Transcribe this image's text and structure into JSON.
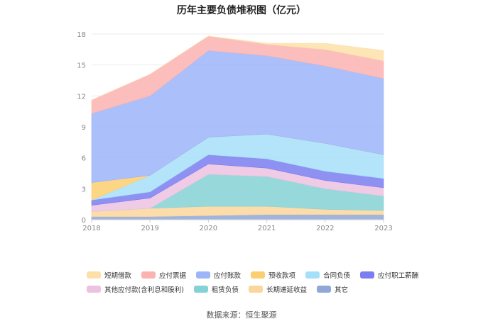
{
  "chart_data": {
    "type": "area",
    "stacked": true,
    "title": "历年主要负债堆积图（亿元）",
    "categories": [
      "2018",
      "2019",
      "2020",
      "2021",
      "2022",
      "2023"
    ],
    "ylim": [
      0,
      18
    ],
    "yticks": [
      0,
      3,
      6,
      9,
      12,
      15,
      18
    ],
    "grid": true,
    "legend_position": "bottom",
    "series": [
      {
        "name": "其它",
        "color": "#8fa8d8",
        "values": [
          0.3,
          0.3,
          0.4,
          0.5,
          0.5,
          0.5
        ]
      },
      {
        "name": "长期递延收益",
        "color": "#fbd69b",
        "values": [
          0.5,
          0.8,
          0.9,
          0.8,
          0.5,
          0.4
        ]
      },
      {
        "name": "租赁负债",
        "color": "#85d2d4",
        "values": [
          0.0,
          0.0,
          3.1,
          2.9,
          2.0,
          1.4
        ]
      },
      {
        "name": "其他应付款(含利息和股利)",
        "color": "#ecc2e0",
        "values": [
          0.6,
          1.0,
          1.0,
          0.8,
          0.8,
          0.8
        ]
      },
      {
        "name": "应付职工薪酬",
        "color": "#7b7ef0",
        "values": [
          0.5,
          0.6,
          0.9,
          0.9,
          0.9,
          0.9
        ]
      },
      {
        "name": "合同负债",
        "color": "#a6dff8",
        "values": [
          0.0,
          1.6,
          1.7,
          2.4,
          2.7,
          2.3
        ]
      },
      {
        "name": "预收款项",
        "color": "#fbcf70",
        "values": [
          1.7,
          0.0,
          0.0,
          0.0,
          0.0,
          0.0
        ]
      },
      {
        "name": "应付账款",
        "color": "#9cb4fa",
        "values": [
          6.7,
          7.7,
          8.4,
          7.6,
          7.5,
          7.4
        ]
      },
      {
        "name": "应付票据",
        "color": "#fbb3b0",
        "values": [
          1.3,
          2.1,
          1.4,
          1.1,
          1.6,
          1.7
        ]
      },
      {
        "name": "短期借款",
        "color": "#fde0a9",
        "values": [
          0.0,
          0.0,
          0.0,
          0.1,
          0.6,
          1.0
        ]
      }
    ],
    "legend_order": [
      "短期借款",
      "应付票据",
      "应付账款",
      "预收款项",
      "合同负债",
      "应付职工薪酬",
      "其他应付款(含利息和股利)",
      "租赁负债",
      "长期递延收益",
      "其它"
    ]
  },
  "footer": {
    "source": "数据来源：恒生聚源"
  }
}
